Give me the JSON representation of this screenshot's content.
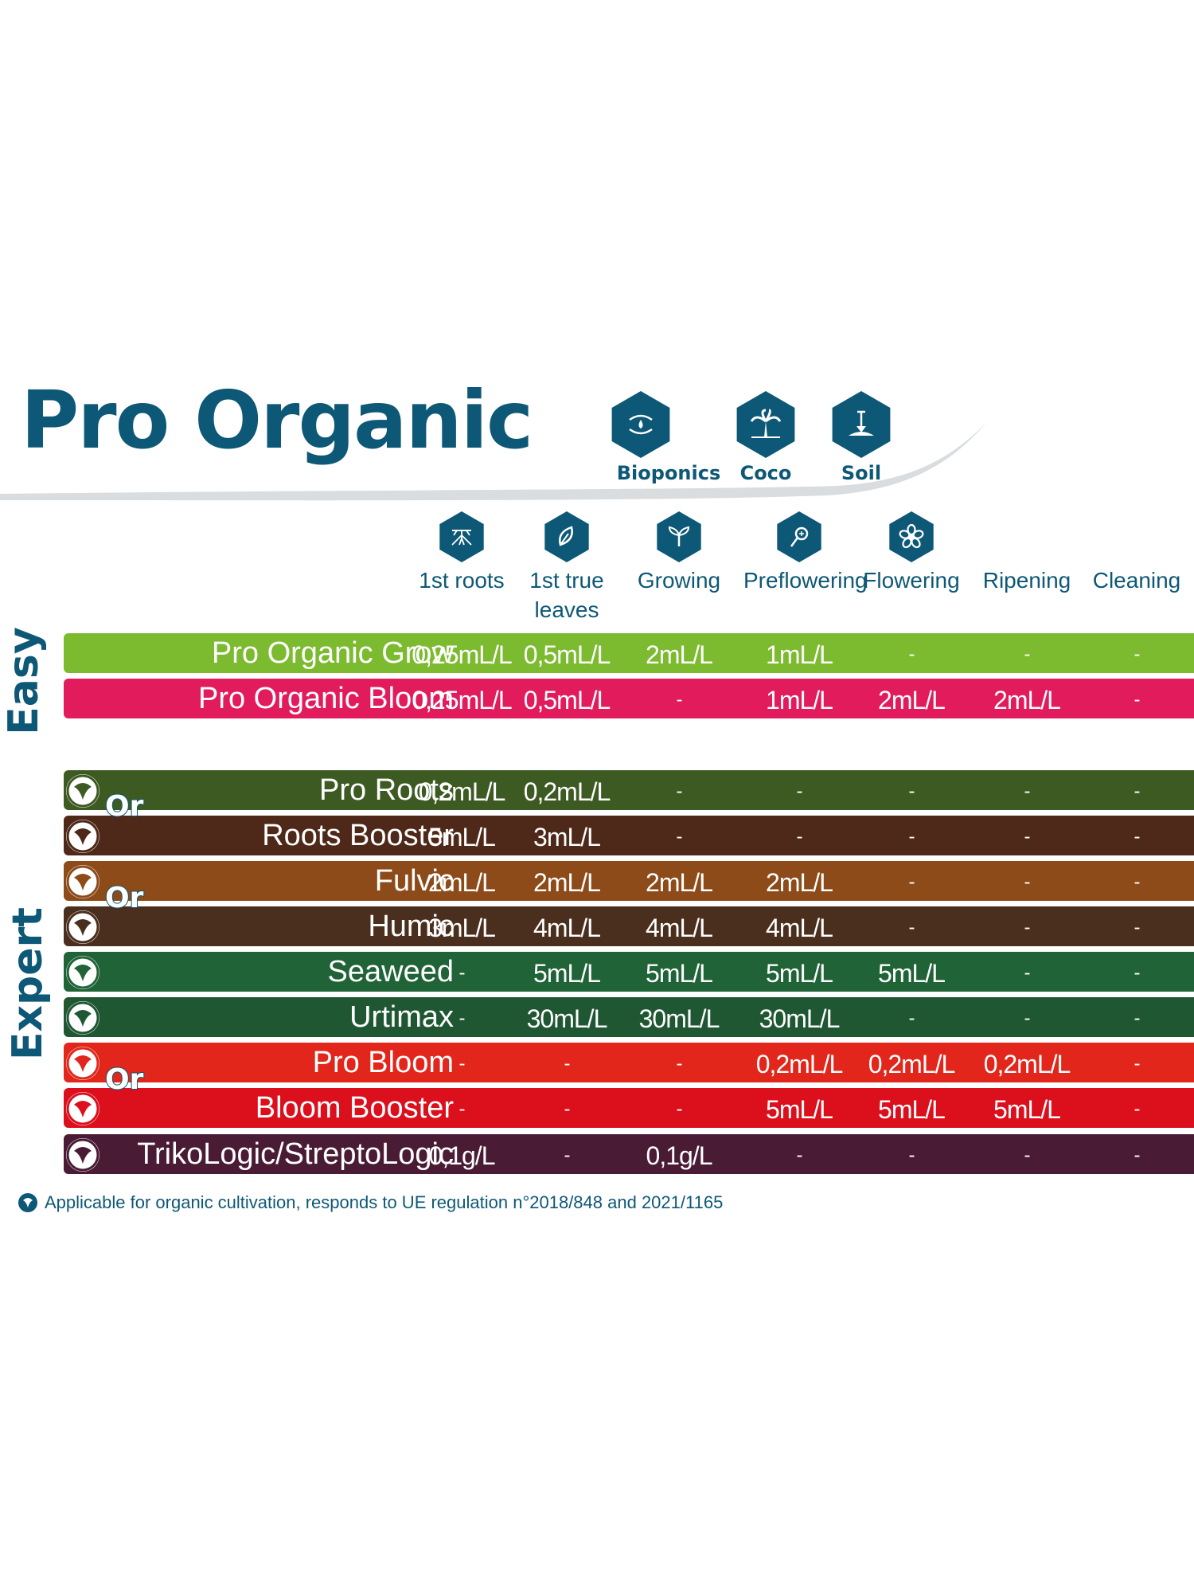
{
  "title": "Pro Organic",
  "brand_color": "#0d5876",
  "mediums": [
    {
      "label": "Bioponics",
      "icon": "hands-water-drop-icon"
    },
    {
      "label": "Coco",
      "icon": "palm-tree-icon"
    },
    {
      "label": "Soil",
      "icon": "shovel-soil-icon"
    }
  ],
  "stages": [
    {
      "label": "1st roots",
      "icon": "roots-icon"
    },
    {
      "label": "1st true leaves",
      "icon": "leaf-icon"
    },
    {
      "label": "Growing",
      "icon": "sprout-icon"
    },
    {
      "label": "Preflowering",
      "icon": "bud-icon"
    },
    {
      "label": "Flowering",
      "icon": "flower-icon"
    },
    {
      "label": "Ripening",
      "icon": ""
    },
    {
      "label": "Cleaning",
      "icon": ""
    }
  ],
  "groups": {
    "easy": "Easy",
    "expert": "Expert"
  },
  "or_label": "Or",
  "products": [
    {
      "name": "Pro Organic Grow",
      "color": "#7cba2f",
      "badge": false,
      "doses": [
        "0,25mL/L",
        "0,5mL/L",
        "2mL/L",
        "1mL/L",
        "-",
        "-",
        "-"
      ]
    },
    {
      "name": "Pro Organic Bloom",
      "color": "#e11b5c",
      "badge": false,
      "doses": [
        "0,25mL/L",
        "0,5mL/L",
        "-",
        "1mL/L",
        "2mL/L",
        "2mL/L",
        "-"
      ]
    },
    {
      "name": "Pro Roots",
      "color": "#3d5a22",
      "badge": true,
      "doses": [
        "0,2mL/L",
        "0,2mL/L",
        "-",
        "-",
        "-",
        "-",
        "-"
      ]
    },
    {
      "name": "Roots Booster",
      "color": "#4e2818",
      "badge": true,
      "doses": [
        "5mL/L",
        "3mL/L",
        "-",
        "-",
        "-",
        "-",
        "-"
      ]
    },
    {
      "name": "Fulvic",
      "color": "#8c4b19",
      "badge": true,
      "doses": [
        "2mL/L",
        "2mL/L",
        "2mL/L",
        "2mL/L",
        "-",
        "-",
        "-"
      ]
    },
    {
      "name": "Humic",
      "color": "#4b2f1e",
      "badge": true,
      "doses": [
        "3mL/L",
        "4mL/L",
        "4mL/L",
        "4mL/L",
        "-",
        "-",
        "-"
      ]
    },
    {
      "name": "Seaweed",
      "color": "#1f6337",
      "badge": true,
      "doses": [
        "-",
        "5mL/L",
        "5mL/L",
        "5mL/L",
        "5mL/L",
        "-",
        "-"
      ]
    },
    {
      "name": "Urtimax",
      "color": "#1f5733",
      "badge": true,
      "doses": [
        "-",
        "30mL/L",
        "30mL/L",
        "30mL/L",
        "-",
        "-",
        "-"
      ]
    },
    {
      "name": "Pro Bloom",
      "color": "#e2261b",
      "badge": true,
      "doses": [
        "-",
        "-",
        "-",
        "0,2mL/L",
        "0,2mL/L",
        "0,2mL/L",
        "-"
      ]
    },
    {
      "name": "Bloom Booster",
      "color": "#dc0f1c",
      "badge": true,
      "doses": [
        "-",
        "-",
        "-",
        "5mL/L",
        "5mL/L",
        "5mL/L",
        "-"
      ]
    },
    {
      "name": "TrikoLogic/StreptoLogic",
      "color": "#4a1b34",
      "badge": true,
      "doses": [
        "0,1g/L",
        "-",
        "0,1g/L",
        "-",
        "-",
        "-",
        "-"
      ]
    }
  ],
  "footnote": "Applicable for organic cultivation, responds to UE regulation n°2018/848 and 2021/1165"
}
